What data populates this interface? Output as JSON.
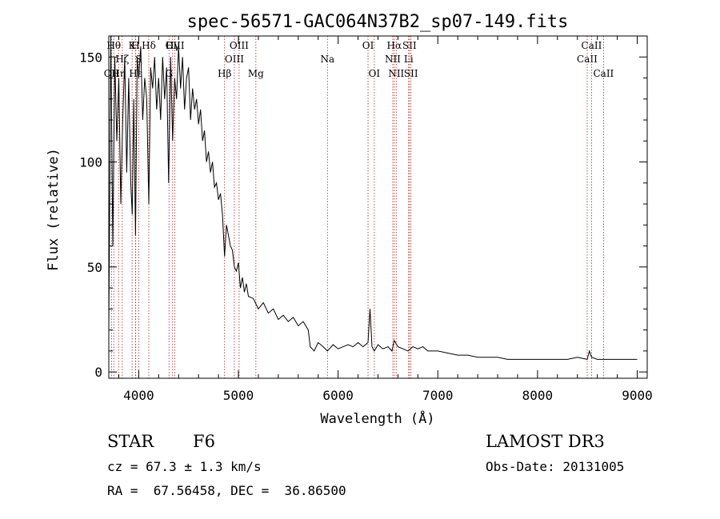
{
  "chart_data": {
    "type": "line",
    "title": "spec-56571-GAC064N37B2_sp07-149.fits",
    "xlabel": "Wavelength (Å)",
    "ylabel": "Flux (relative)",
    "xlim": [
      3700,
      9100
    ],
    "ylim": [
      -3,
      160
    ],
    "xticks": [
      4000,
      5000,
      6000,
      7000,
      8000,
      9000
    ],
    "xtick_labels": [
      "4000",
      "5000",
      "6000",
      "7000",
      "8000",
      "9000"
    ],
    "yticks": [
      0,
      50,
      100,
      150
    ],
    "ytick_labels": [
      "0",
      "50",
      "100",
      "150"
    ],
    "series": [
      {
        "name": "spectrum",
        "x": [
          3700,
          3720,
          3740,
          3760,
          3780,
          3800,
          3820,
          3840,
          3860,
          3880,
          3900,
          3920,
          3935,
          3950,
          3968,
          3985,
          4000,
          4020,
          4040,
          4060,
          4080,
          4101,
          4120,
          4140,
          4160,
          4180,
          4200,
          4220,
          4240,
          4260,
          4280,
          4300,
          4320,
          4340,
          4360,
          4380,
          4400,
          4420,
          4440,
          4460,
          4480,
          4500,
          4520,
          4540,
          4560,
          4580,
          4600,
          4620,
          4640,
          4660,
          4680,
          4700,
          4720,
          4740,
          4760,
          4780,
          4800,
          4820,
          4840,
          4861,
          4880,
          4900,
          4920,
          4940,
          4960,
          4980,
          5000,
          5020,
          5040,
          5060,
          5080,
          5100,
          5150,
          5200,
          5250,
          5300,
          5350,
          5400,
          5450,
          5500,
          5550,
          5600,
          5650,
          5700,
          5720,
          5740,
          5760,
          5800,
          5850,
          5893,
          5950,
          6000,
          6050,
          6100,
          6150,
          6200,
          6250,
          6300,
          6320,
          6340,
          6363,
          6400,
          6450,
          6500,
          6540,
          6563,
          6600,
          6650,
          6700,
          6750,
          6800,
          6850,
          6900,
          7000,
          7100,
          7200,
          7300,
          7400,
          7500,
          7600,
          7700,
          7800,
          7900,
          8000,
          8100,
          8200,
          8300,
          8400,
          8498,
          8520,
          8542,
          8600,
          8662,
          8700,
          8800,
          8900,
          9000
        ],
        "values": [
          20,
          160,
          60,
          150,
          110,
          140,
          80,
          120,
          150,
          95,
          140,
          90,
          75,
          130,
          65,
          150,
          140,
          155,
          120,
          140,
          130,
          80,
          145,
          135,
          150,
          125,
          140,
          120,
          150,
          130,
          145,
          90,
          150,
          110,
          140,
          130,
          155,
          135,
          150,
          125,
          140,
          145,
          120,
          135,
          125,
          130,
          118,
          125,
          110,
          115,
          100,
          105,
          95,
          100,
          88,
          90,
          82,
          85,
          75,
          55,
          70,
          65,
          60,
          58,
          50,
          48,
          52,
          40,
          45,
          38,
          42,
          36,
          35,
          30,
          33,
          28,
          30,
          25,
          27,
          24,
          26,
          22,
          24,
          20,
          12,
          11,
          10,
          14,
          12,
          10,
          13,
          11,
          12,
          13,
          12,
          14,
          12,
          14,
          30,
          12,
          10,
          13,
          11,
          12,
          10,
          15,
          12,
          11,
          10,
          12,
          11,
          12,
          10,
          10,
          9,
          8,
          8,
          7,
          7,
          7,
          6,
          6,
          6,
          6,
          6,
          6,
          6,
          7,
          6,
          10,
          7,
          6,
          6,
          6,
          6,
          6,
          6
        ]
      }
    ],
    "spectral_lines": [
      {
        "label": "OII",
        "x": 3727,
        "row": 3
      },
      {
        "label": "Hθ",
        "x": 3750,
        "row": 1
      },
      {
        "label": "Hη",
        "x": 3798,
        "row": 3
      },
      {
        "label": "Hζ",
        "x": 3835,
        "row": 2
      },
      {
        "label": "K",
        "x": 3934,
        "row": 1
      },
      {
        "label": "H",
        "x": 3968,
        "row": 1
      },
      {
        "label": "Hε",
        "x": 3970,
        "row": 3
      },
      {
        "label": "S",
        "x": 4000,
        "row": 2
      },
      {
        "label": "Hδ",
        "x": 4101,
        "row": 1
      },
      {
        "label": "G",
        "x": 4304,
        "row": 3
      },
      {
        "label": "Hγ",
        "x": 4340,
        "row": 1
      },
      {
        "label": "OIII",
        "x": 4363,
        "row": 1
      },
      {
        "label": "Hβ",
        "x": 4861,
        "row": 3
      },
      {
        "label": "OIII",
        "x": 4959,
        "row": 2
      },
      {
        "label": "OIII",
        "x": 5007,
        "row": 1
      },
      {
        "label": "Mg",
        "x": 5175,
        "row": 3
      },
      {
        "label": "Na",
        "x": 5893,
        "row": 2
      },
      {
        "label": "OI",
        "x": 6300,
        "row": 1
      },
      {
        "label": "OI",
        "x": 6363,
        "row": 3
      },
      {
        "label": "NII",
        "x": 6548,
        "row": 2
      },
      {
        "label": "Hα",
        "x": 6563,
        "row": 1
      },
      {
        "label": "NII",
        "x": 6583,
        "row": 3
      },
      {
        "label": "Li",
        "x": 6707,
        "row": 2
      },
      {
        "label": "SII",
        "x": 6716,
        "row": 1
      },
      {
        "label": "SII",
        "x": 6731,
        "row": 3
      },
      {
        "label": "CaII",
        "x": 8498,
        "row": 2
      },
      {
        "label": "CaII",
        "x": 8542,
        "row": 1
      },
      {
        "label": "CaII",
        "x": 8662,
        "row": 3
      }
    ]
  },
  "info": {
    "class_label": "STAR",
    "subclass": "F6",
    "cz": "cz = 67.3 ± 1.3 km/s",
    "coords": "RA =  67.56458, DEC =  36.86500",
    "survey": "LAMOST DR3",
    "obs_date": "Obs-Date: 20131005"
  },
  "colors": {
    "line": "#000000",
    "marker": "#b22222",
    "background": "#ffffff"
  }
}
